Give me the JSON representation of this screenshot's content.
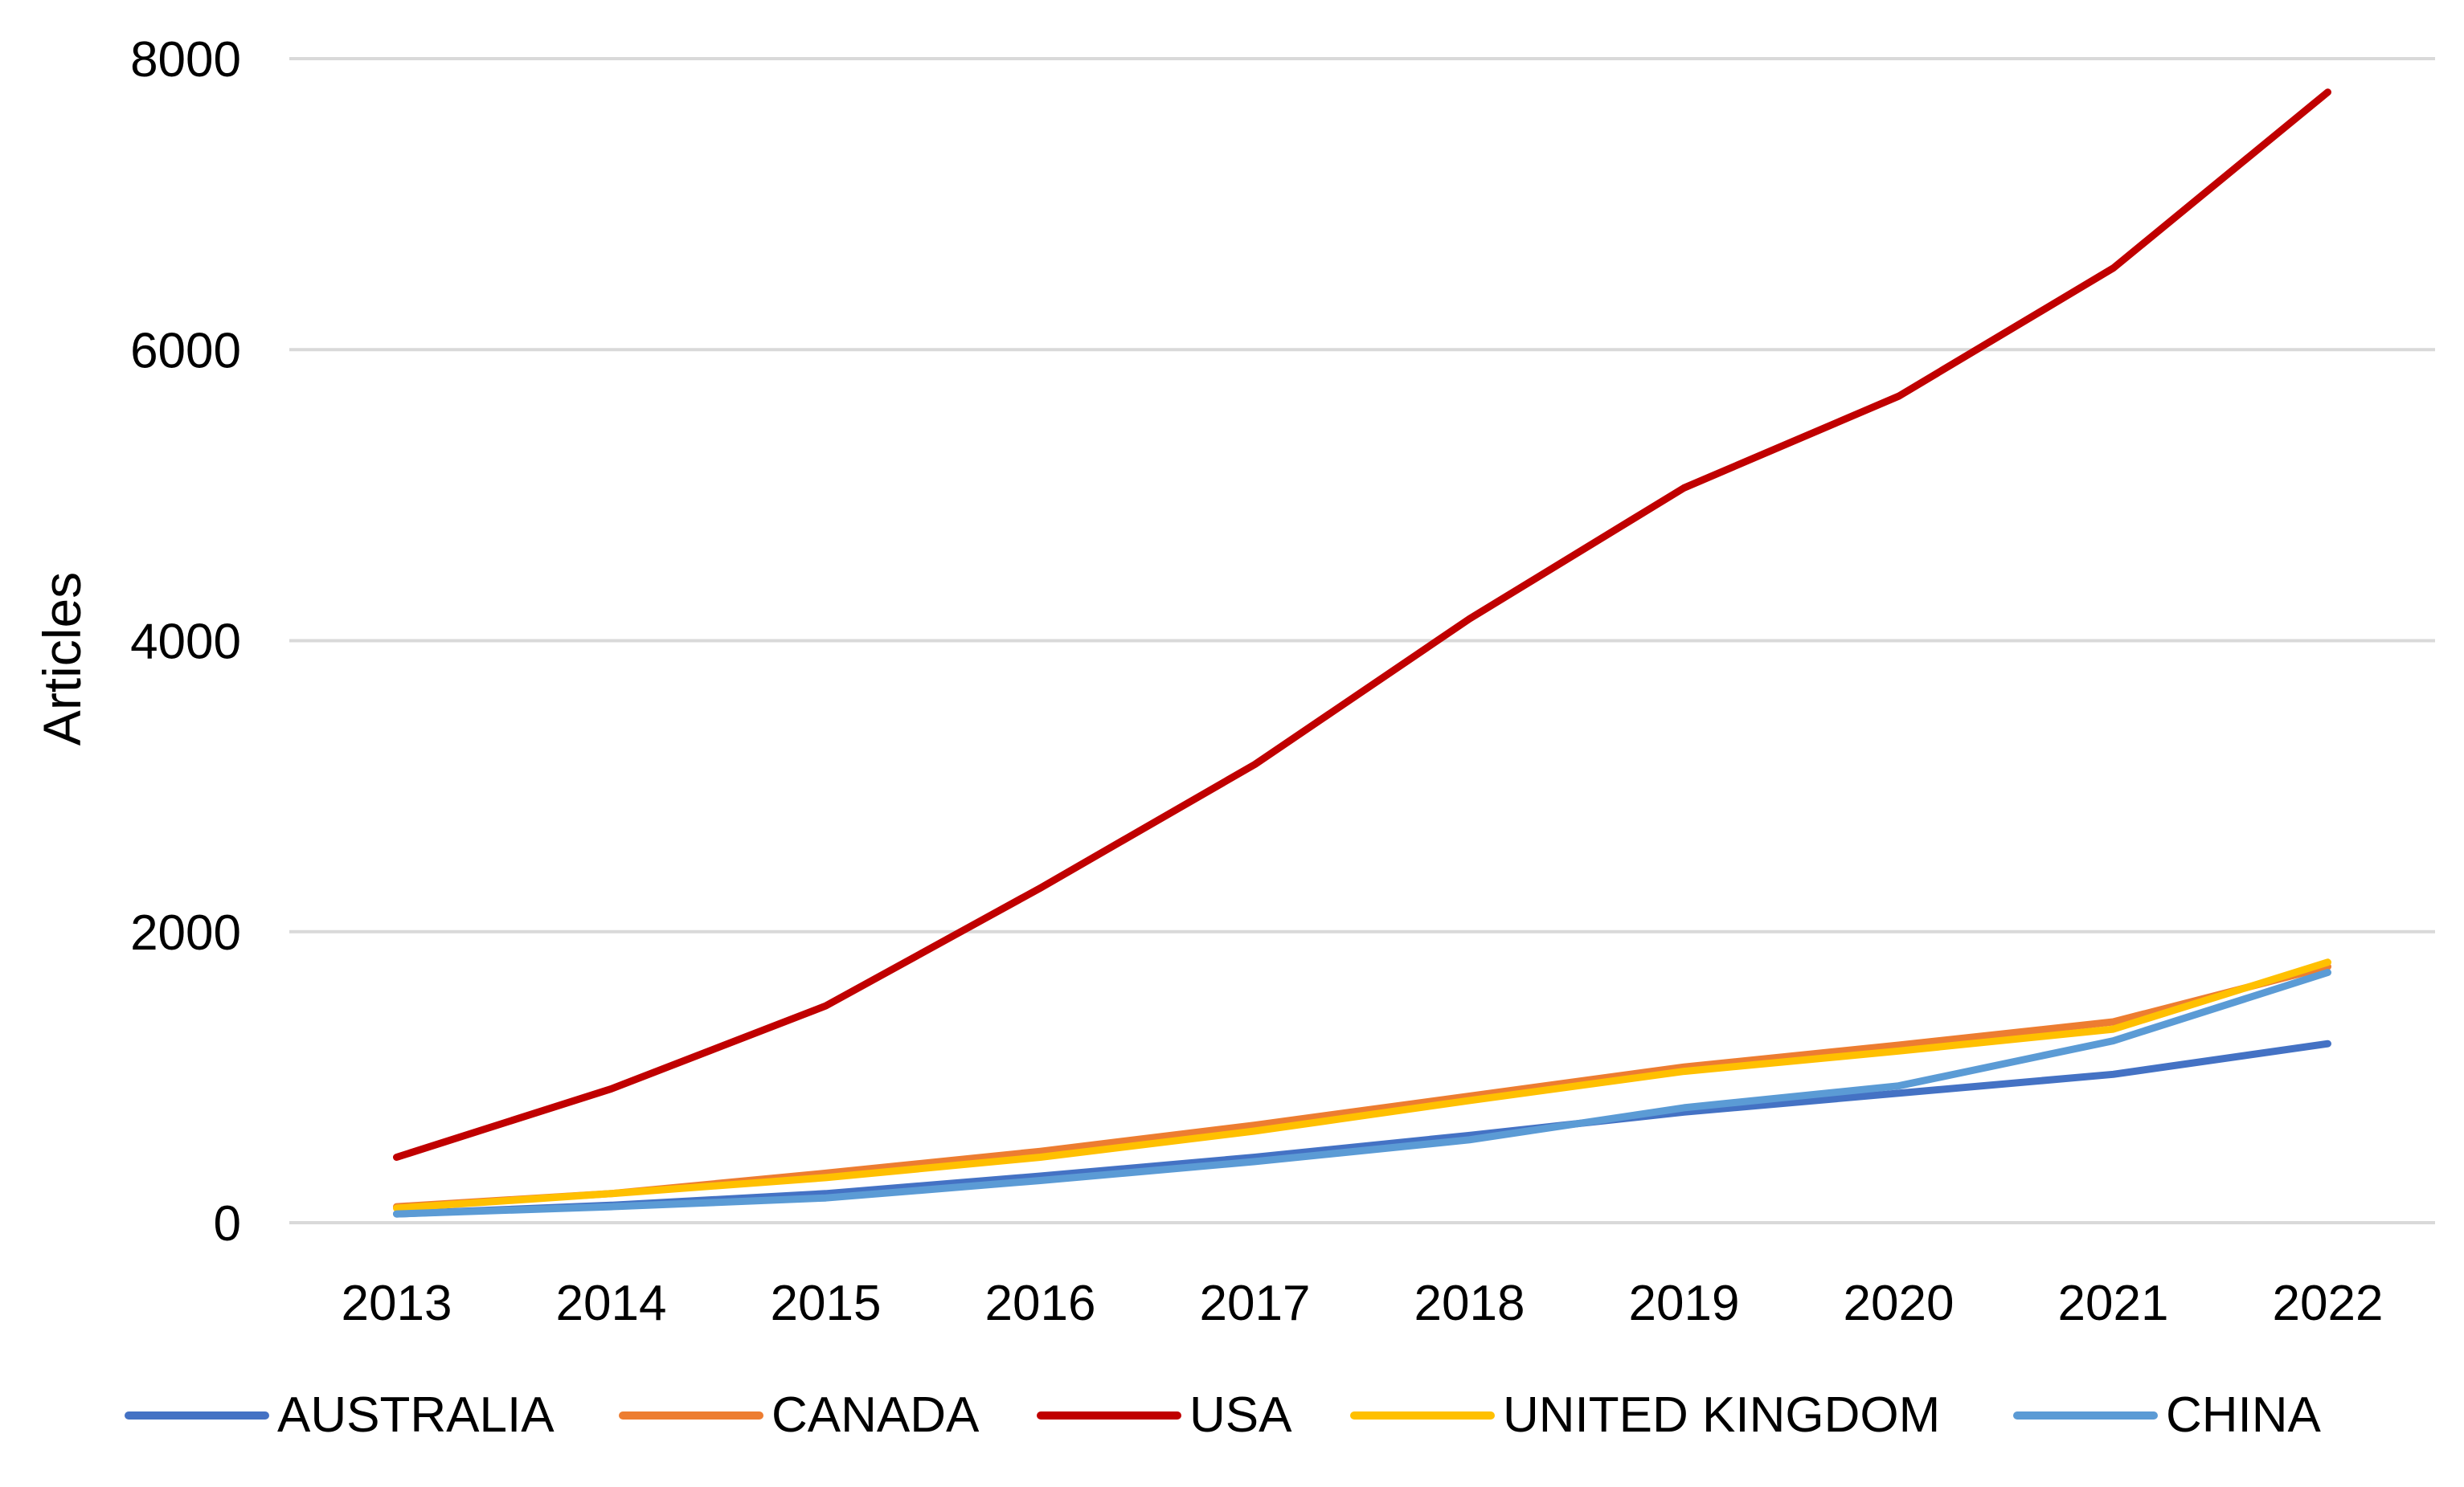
{
  "chart_data": {
    "type": "line",
    "title": "",
    "xlabel": "",
    "ylabel": "Articles",
    "ylim": [
      0,
      8000
    ],
    "yticks": [
      "0",
      "2000",
      "4000",
      "6000",
      "8000"
    ],
    "categories": [
      "2013",
      "2014",
      "2015",
      "2016",
      "2017",
      "2018",
      "2019",
      "2020",
      "2021",
      "2022"
    ],
    "grid": true,
    "legend_position": "bottom",
    "series": [
      {
        "name": "AUSTRALIA",
        "color": "#4472C4",
        "values": [
          60,
          120,
          200,
          320,
          450,
          600,
          760,
          890,
          1020,
          1230
        ]
      },
      {
        "name": "CANADA",
        "color": "#ED7D31",
        "values": [
          110,
          200,
          340,
          490,
          670,
          870,
          1070,
          1220,
          1380,
          1760
        ]
      },
      {
        "name": "USA",
        "color": "#C00000",
        "values": [
          450,
          920,
          1490,
          2300,
          3150,
          4150,
          5050,
          5680,
          6560,
          7770
        ]
      },
      {
        "name": "UNITED KINGDOM",
        "color": "#FFC000",
        "values": [
          100,
          200,
          310,
          450,
          630,
          840,
          1040,
          1180,
          1330,
          1790
        ]
      },
      {
        "name": "CHINA",
        "color": "#5B9BD5",
        "values": [
          60,
          110,
          170,
          290,
          420,
          570,
          790,
          940,
          1250,
          1720
        ]
      }
    ]
  }
}
